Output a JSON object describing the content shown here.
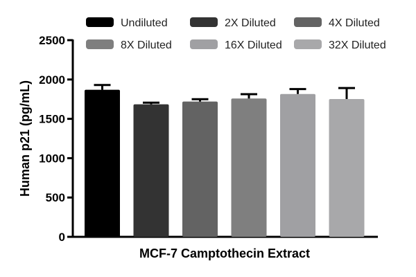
{
  "chart_data": {
    "type": "bar",
    "title": "",
    "xlabel": "MCF-7 Camptothecin Extract",
    "ylabel": "Human p21 (pg/mL)",
    "ylim": [
      0,
      2500
    ],
    "yticks": [
      "0",
      "500",
      "1000",
      "1500",
      "2000",
      "2500"
    ],
    "legend_position": "top",
    "series": [
      {
        "name": "Undiluted",
        "value": 1870,
        "error": 60,
        "color": "#000000"
      },
      {
        "name": "2X Diluted",
        "value": 1685,
        "error": 20,
        "color": "#333333"
      },
      {
        "name": "4X Diluted",
        "value": 1720,
        "error": 30,
        "color": "#636363"
      },
      {
        "name": "8X Diluted",
        "value": 1758,
        "error": 55,
        "color": "#7f7f7f"
      },
      {
        "name": "16X Diluted",
        "value": 1816,
        "error": 62,
        "color": "#a0a0a3"
      },
      {
        "name": "32X Diluted",
        "value": 1752,
        "error": 140,
        "color": "#a8a8aa"
      }
    ]
  }
}
